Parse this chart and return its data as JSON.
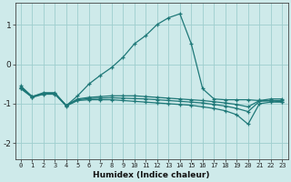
{
  "xlabel": "Humidex (Indice chaleur)",
  "bg_color": "#ceeaea",
  "grid_color": "#9ecece",
  "line_color": "#1e7878",
  "xlim": [
    -0.5,
    23.5
  ],
  "ylim": [
    -2.4,
    1.55
  ],
  "yticks": [
    -2,
    -1,
    0,
    1
  ],
  "xticks": [
    0,
    1,
    2,
    3,
    4,
    5,
    6,
    7,
    8,
    9,
    10,
    11,
    12,
    13,
    14,
    15,
    16,
    17,
    18,
    19,
    20,
    21,
    22,
    23
  ],
  "series": [
    {
      "x": [
        0,
        1,
        2,
        3,
        4,
        5,
        6,
        7,
        8,
        9,
        10,
        11,
        12,
        13,
        14,
        15,
        16,
        17,
        18,
        19,
        20,
        21,
        22,
        23
      ],
      "y": [
        -0.55,
        -0.82,
        -0.72,
        -0.72,
        -1.05,
        -0.8,
        -0.5,
        -0.28,
        -0.08,
        0.18,
        0.52,
        0.73,
        1.01,
        1.18,
        1.28,
        0.52,
        -0.62,
        -0.88,
        -0.9,
        -0.9,
        -0.9,
        -0.92,
        -0.93,
        -0.95
      ]
    },
    {
      "x": [
        0,
        1,
        2,
        3,
        4,
        5,
        6,
        7,
        8,
        9,
        10,
        11,
        12,
        13,
        14,
        15,
        16,
        17,
        18,
        19,
        20,
        21,
        22,
        23
      ],
      "y": [
        -0.58,
        -0.82,
        -0.74,
        -0.74,
        -1.04,
        -0.88,
        -0.84,
        -0.82,
        -0.8,
        -0.8,
        -0.8,
        -0.82,
        -0.84,
        -0.86,
        -0.88,
        -0.9,
        -0.92,
        -0.95,
        -0.98,
        -1.02,
        -1.08,
        -0.92,
        -0.88,
        -0.88
      ]
    },
    {
      "x": [
        0,
        1,
        2,
        3,
        4,
        5,
        6,
        7,
        8,
        9,
        10,
        11,
        12,
        13,
        14,
        15,
        16,
        17,
        18,
        19,
        20,
        21,
        22,
        23
      ],
      "y": [
        -0.6,
        -0.83,
        -0.75,
        -0.75,
        -1.05,
        -0.9,
        -0.87,
        -0.86,
        -0.85,
        -0.86,
        -0.87,
        -0.88,
        -0.9,
        -0.92,
        -0.94,
        -0.96,
        -0.98,
        -1.02,
        -1.06,
        -1.12,
        -1.2,
        -0.94,
        -0.92,
        -0.92
      ]
    },
    {
      "x": [
        0,
        1,
        2,
        3,
        4,
        5,
        6,
        7,
        8,
        9,
        10,
        11,
        12,
        13,
        14,
        15,
        16,
        17,
        18,
        19,
        20,
        21,
        22,
        23
      ],
      "y": [
        -0.62,
        -0.84,
        -0.76,
        -0.76,
        -1.06,
        -0.92,
        -0.9,
        -0.9,
        -0.9,
        -0.92,
        -0.94,
        -0.96,
        -0.98,
        -1.0,
        -1.02,
        -1.04,
        -1.08,
        -1.12,
        -1.18,
        -1.28,
        -1.52,
        -1.0,
        -0.96,
        -0.96
      ]
    }
  ]
}
